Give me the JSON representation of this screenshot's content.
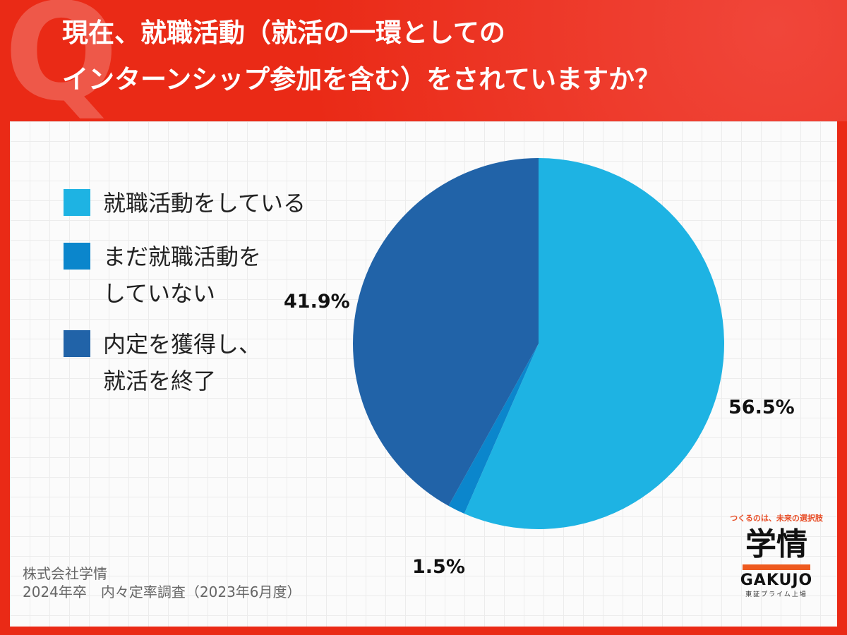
{
  "header": {
    "q_letter": "Q",
    "title_line1": "現在、就職活動（就活の一環としての",
    "title_line2": "インターンシップ参加を含む）をされていますか？"
  },
  "chart_data": {
    "type": "pie",
    "title": "現在、就職活動（就活の一環としてのインターンシップ参加を含む）をされていますか？",
    "legend_position": "left",
    "series": [
      {
        "name": "就職活動をしている",
        "value": 56.5,
        "label": "56.5%",
        "color": "#1eb3e3"
      },
      {
        "name": "まだ就職活動を\nしていない",
        "value": 1.5,
        "label": "1.5%",
        "color": "#0b86cc"
      },
      {
        "name": "内定を獲得し、\n就活を終了",
        "value": 41.9,
        "label": "41.9%",
        "color": "#2163a8"
      }
    ]
  },
  "footer": {
    "line1": "株式会社学情",
    "line2": "2024年卒　内々定率調査（2023年6月度）"
  },
  "logo": {
    "tagline": "つくるのは、未来の選択肢",
    "kanji": "学情",
    "latin": "GAKUJO",
    "sub": "東証プライム上場",
    "accent_color": "#ee5a1f"
  }
}
